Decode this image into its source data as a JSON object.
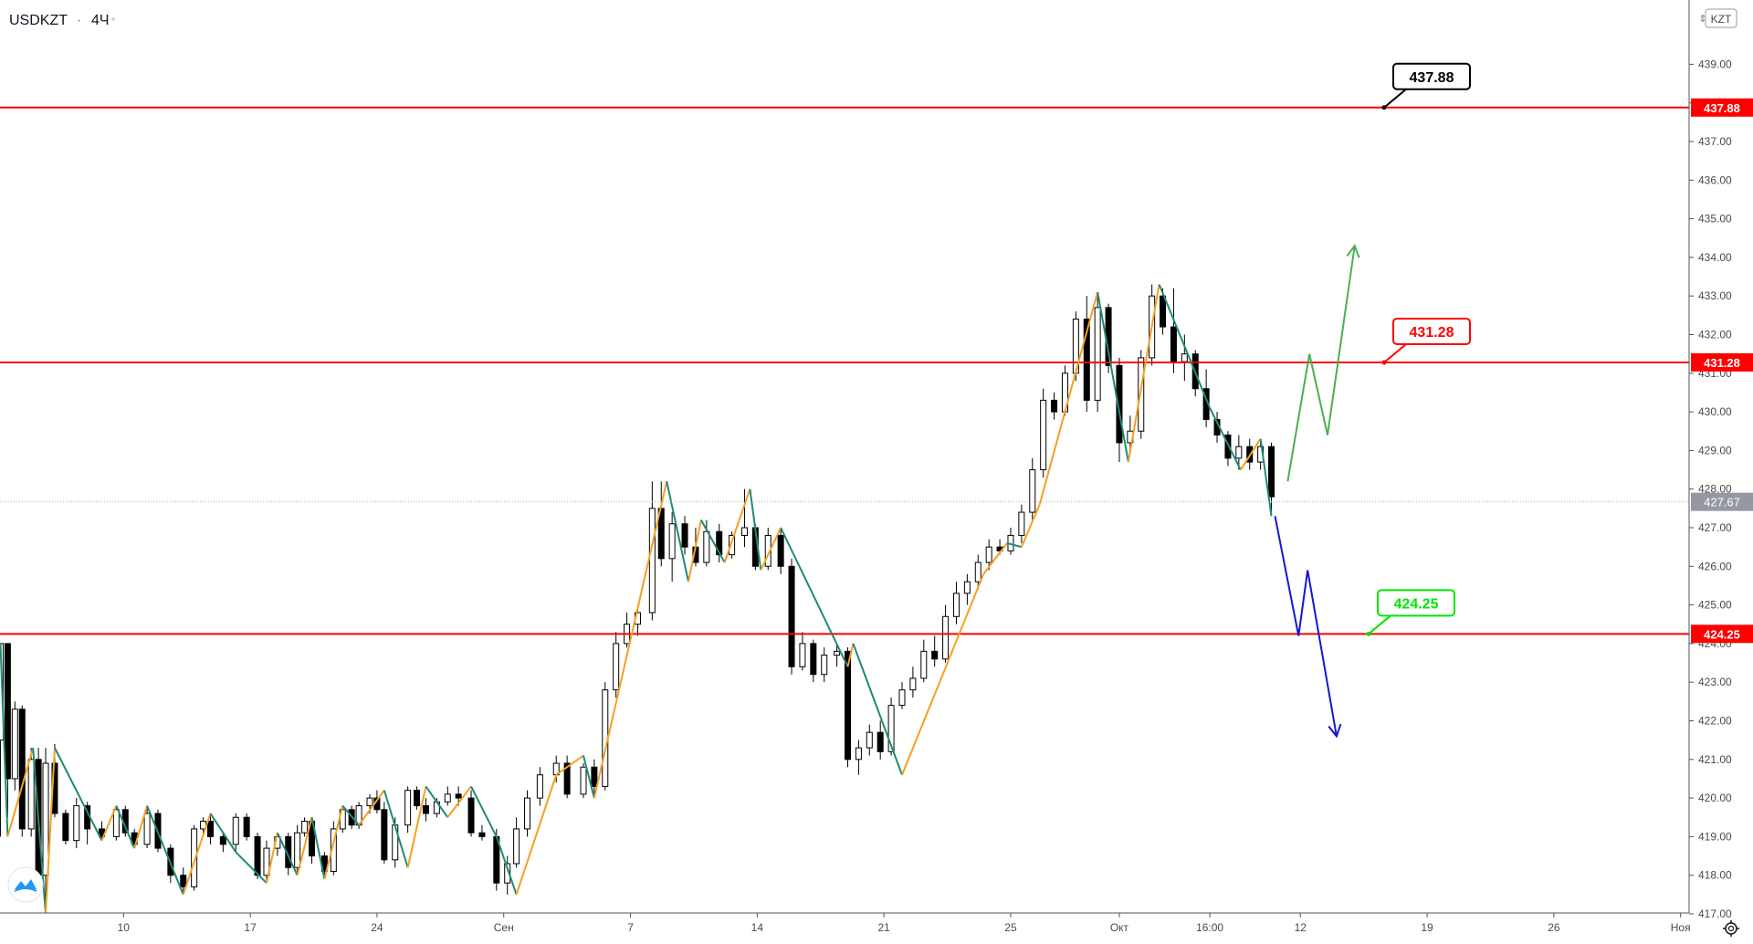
{
  "header": {
    "symbol": "USDKZT",
    "separator": "·",
    "interval": "4Ч"
  },
  "currency_badge": "KZT",
  "colors": {
    "level_line": "#ff0000",
    "zigzag_up": "#f5a020",
    "zigzag_down": "#1f8a78",
    "projection_up": "#4caf50",
    "projection_down": "#1515d8",
    "candle_up": "#ffffff",
    "candle_down": "#000000",
    "current_price_badge": "#9598a1",
    "label_black": "#000000",
    "label_red": "#ff0000",
    "label_green": "#00e600"
  },
  "chart_data": {
    "type": "candlestick",
    "symbol": "USDKZT",
    "interval": "4Ч",
    "y_axis": {
      "min": 417,
      "max": 439,
      "ticks": [
        "417.00",
        "418.00",
        "419.00",
        "420.00",
        "421.00",
        "422.00",
        "423.00",
        "424.00",
        "425.00",
        "426.00",
        "427.00",
        "428.00",
        "429.00",
        "430.00",
        "431.00",
        "432.00",
        "433.00",
        "434.00",
        "435.00",
        "436.00",
        "437.00",
        "438.00",
        "439.00"
      ]
    },
    "x_axis": {
      "ticks": [
        {
          "label": "10",
          "x": 10
        },
        {
          "label": "17",
          "x": 17
        },
        {
          "label": "24",
          "x": 24
        },
        {
          "label": "Сен",
          "x": 31
        },
        {
          "label": "7",
          "x": 38
        },
        {
          "label": "14",
          "x": 45
        },
        {
          "label": "21",
          "x": 52
        },
        {
          "label": "25",
          "x": 59
        },
        {
          "label": "Окт",
          "x": 65
        },
        {
          "label": "16:00",
          "x": 70
        },
        {
          "label": "12",
          "x": 75
        },
        {
          "label": "19",
          "x": 82
        },
        {
          "label": "26",
          "x": 89
        },
        {
          "label": "Ноя",
          "x": 96
        }
      ]
    },
    "current_price": "427.67",
    "levels": [
      {
        "value": 437.88,
        "label": "437.88",
        "color": "black"
      },
      {
        "value": 431.28,
        "label": "431.28",
        "color": "red"
      },
      {
        "value": 424.25,
        "label": "424.25",
        "color": "green"
      }
    ],
    "zigzag": [
      [
        3.2,
        424.0
      ],
      [
        3.6,
        419.0
      ],
      [
        5.0,
        421.3
      ],
      [
        5.7,
        417.0
      ],
      [
        6.2,
        421.3
      ],
      [
        8.8,
        418.9
      ],
      [
        9.6,
        419.8
      ],
      [
        10.6,
        418.7
      ],
      [
        11.3,
        419.8
      ],
      [
        13.3,
        417.5
      ],
      [
        14.8,
        419.6
      ],
      [
        16.2,
        418.6
      ],
      [
        17.9,
        417.8
      ],
      [
        18.5,
        419.1
      ],
      [
        19.6,
        418.0
      ],
      [
        20.4,
        419.5
      ],
      [
        21.1,
        417.9
      ],
      [
        22.1,
        419.8
      ],
      [
        23.0,
        419.3
      ],
      [
        24.4,
        420.2
      ],
      [
        25.7,
        418.2
      ],
      [
        26.7,
        420.3
      ],
      [
        27.9,
        419.5
      ],
      [
        29.2,
        420.3
      ],
      [
        30.6,
        419.0
      ],
      [
        31.7,
        417.5
      ],
      [
        33.9,
        420.6
      ],
      [
        35.4,
        421.1
      ],
      [
        36.0,
        420.0
      ],
      [
        40.0,
        428.2
      ],
      [
        41.2,
        425.6
      ],
      [
        41.9,
        427.2
      ],
      [
        43.2,
        426.1
      ],
      [
        44.6,
        428.0
      ],
      [
        45.2,
        425.9
      ],
      [
        46.3,
        427.0
      ],
      [
        50.0,
        423.4
      ],
      [
        50.3,
        424.0
      ],
      [
        53.0,
        420.6
      ],
      [
        57.5,
        425.8
      ],
      [
        58.8,
        426.6
      ],
      [
        59.6,
        426.5
      ],
      [
        60.6,
        427.6
      ],
      [
        63.8,
        433.1
      ],
      [
        65.5,
        428.7
      ],
      [
        67.2,
        433.3
      ],
      [
        70.0,
        430.1
      ],
      [
        71.7,
        428.5
      ],
      [
        72.8,
        429.3
      ],
      [
        73.4,
        427.3
      ]
    ],
    "candles": [
      [
        3.2,
        421.5,
        424.0,
        419.0,
        424.0
      ],
      [
        3.6,
        424.0,
        424.0,
        419.5,
        420.5
      ],
      [
        4.0,
        420.5,
        422.5,
        420.2,
        422.3
      ],
      [
        4.4,
        422.3,
        422.4,
        419.0,
        419.2
      ],
      [
        4.9,
        419.2,
        421.3,
        419.0,
        421.0
      ],
      [
        5.3,
        421.0,
        421.3,
        417.5,
        418.0
      ],
      [
        5.7,
        418.0,
        421.3,
        417.0,
        420.9
      ],
      [
        6.2,
        420.9,
        421.4,
        419.5,
        419.6
      ],
      [
        6.8,
        419.6,
        419.7,
        418.8,
        418.9
      ],
      [
        7.4,
        418.9,
        420.0,
        418.7,
        419.8
      ],
      [
        8.0,
        419.8,
        419.9,
        418.8,
        419.2
      ],
      [
        8.8,
        419.2,
        419.4,
        418.9,
        419.0
      ],
      [
        9.6,
        419.0,
        419.8,
        418.9,
        419.7
      ],
      [
        10.1,
        419.7,
        419.8,
        419.0,
        419.1
      ],
      [
        10.6,
        419.1,
        419.2,
        418.7,
        418.8
      ],
      [
        11.3,
        418.8,
        419.8,
        418.7,
        419.6
      ],
      [
        11.9,
        419.6,
        419.7,
        418.6,
        418.7
      ],
      [
        12.6,
        418.7,
        418.8,
        417.8,
        418.0
      ],
      [
        13.3,
        418.0,
        418.2,
        417.5,
        417.7
      ],
      [
        13.9,
        417.7,
        419.3,
        417.6,
        419.2
      ],
      [
        14.4,
        419.2,
        419.5,
        419.0,
        419.4
      ],
      [
        14.8,
        419.4,
        419.6,
        418.8,
        419.0
      ],
      [
        15.5,
        419.0,
        419.1,
        418.6,
        418.8
      ],
      [
        16.2,
        418.8,
        419.6,
        418.6,
        419.5
      ],
      [
        16.8,
        419.5,
        419.6,
        418.9,
        419.0
      ],
      [
        17.4,
        419.0,
        419.1,
        417.9,
        418.0
      ],
      [
        17.9,
        418.0,
        418.9,
        417.8,
        418.7
      ],
      [
        18.5,
        418.7,
        419.1,
        418.5,
        419.0
      ],
      [
        19.1,
        419.0,
        419.1,
        418.0,
        418.2
      ],
      [
        19.6,
        418.2,
        419.3,
        418.0,
        419.1
      ],
      [
        20.0,
        419.1,
        419.5,
        419.0,
        419.4
      ],
      [
        20.4,
        419.4,
        419.5,
        418.3,
        418.5
      ],
      [
        21.1,
        418.5,
        418.6,
        417.9,
        418.1
      ],
      [
        21.6,
        418.1,
        419.4,
        418.0,
        419.2
      ],
      [
        22.1,
        419.2,
        419.8,
        419.1,
        419.7
      ],
      [
        22.6,
        419.7,
        419.8,
        419.2,
        419.3
      ],
      [
        23.0,
        419.3,
        419.9,
        419.2,
        419.8
      ],
      [
        23.6,
        419.8,
        420.1,
        419.6,
        420.0
      ],
      [
        24.0,
        420.0,
        420.2,
        419.6,
        419.7
      ],
      [
        24.4,
        419.7,
        419.9,
        418.3,
        418.4
      ],
      [
        25.0,
        418.4,
        419.5,
        418.2,
        419.3
      ],
      [
        25.7,
        419.3,
        420.3,
        419.1,
        420.2
      ],
      [
        26.2,
        420.2,
        420.3,
        419.7,
        419.8
      ],
      [
        26.7,
        419.8,
        420.0,
        419.4,
        419.6
      ],
      [
        27.3,
        419.6,
        420.0,
        419.5,
        419.9
      ],
      [
        27.9,
        419.9,
        420.3,
        419.8,
        420.1
      ],
      [
        28.5,
        420.1,
        420.3,
        419.8,
        420.0
      ],
      [
        29.2,
        420.0,
        420.2,
        419.0,
        419.1
      ],
      [
        29.8,
        419.1,
        419.3,
        418.9,
        419.0
      ],
      [
        30.6,
        419.0,
        419.2,
        417.6,
        417.8
      ],
      [
        31.2,
        417.8,
        418.5,
        417.5,
        418.3
      ],
      [
        31.7,
        418.3,
        419.5,
        418.2,
        419.2
      ],
      [
        32.3,
        419.2,
        420.2,
        419.0,
        420.0
      ],
      [
        33.0,
        420.0,
        420.8,
        419.8,
        420.6
      ],
      [
        33.9,
        420.6,
        421.1,
        420.4,
        420.9
      ],
      [
        34.5,
        420.9,
        421.1,
        420.0,
        420.1
      ],
      [
        35.4,
        420.1,
        420.9,
        420.0,
        420.8
      ],
      [
        36.0,
        420.8,
        421.0,
        420.0,
        420.3
      ],
      [
        36.6,
        420.3,
        423.0,
        420.2,
        422.8
      ],
      [
        37.2,
        422.8,
        424.3,
        422.6,
        424.0
      ],
      [
        37.8,
        424.0,
        424.8,
        423.9,
        424.5
      ],
      [
        38.4,
        424.5,
        425.0,
        424.2,
        424.8
      ],
      [
        39.2,
        424.8,
        428.2,
        424.6,
        427.5
      ],
      [
        39.7,
        427.5,
        428.2,
        426.0,
        426.2
      ],
      [
        40.3,
        426.2,
        427.4,
        425.6,
        427.1
      ],
      [
        41.0,
        427.1,
        427.3,
        426.3,
        426.5
      ],
      [
        41.6,
        426.5,
        427.0,
        426.0,
        426.1
      ],
      [
        42.2,
        426.1,
        427.2,
        426.0,
        426.9
      ],
      [
        42.9,
        426.9,
        427.1,
        426.1,
        426.3
      ],
      [
        43.6,
        426.3,
        426.9,
        426.2,
        426.8
      ],
      [
        44.3,
        426.8,
        428.0,
        426.5,
        427.0
      ],
      [
        44.9,
        427.0,
        427.1,
        425.9,
        426.0
      ],
      [
        45.6,
        426.0,
        427.0,
        425.9,
        426.8
      ],
      [
        46.3,
        426.8,
        427.0,
        425.8,
        426.0
      ],
      [
        46.9,
        426.0,
        426.2,
        423.2,
        423.4
      ],
      [
        47.5,
        423.4,
        424.3,
        423.3,
        424.0
      ],
      [
        48.1,
        424.0,
        424.1,
        423.0,
        423.2
      ],
      [
        48.7,
        423.2,
        423.9,
        423.0,
        423.7
      ],
      [
        49.4,
        423.7,
        424.0,
        423.4,
        423.8
      ],
      [
        50.0,
        423.8,
        423.9,
        420.8,
        421.0
      ],
      [
        50.6,
        421.0,
        421.5,
        420.6,
        421.3
      ],
      [
        51.2,
        421.3,
        421.9,
        421.1,
        421.7
      ],
      [
        51.8,
        421.7,
        422.0,
        421.0,
        421.2
      ],
      [
        52.4,
        421.2,
        422.6,
        421.1,
        422.4
      ],
      [
        53.0,
        422.4,
        423.0,
        422.3,
        422.8
      ],
      [
        53.6,
        422.8,
        423.4,
        422.6,
        423.1
      ],
      [
        54.2,
        423.1,
        424.1,
        423.0,
        423.8
      ],
      [
        54.8,
        423.8,
        424.2,
        423.4,
        423.6
      ],
      [
        55.4,
        423.6,
        425.0,
        423.5,
        424.7
      ],
      [
        56.0,
        424.7,
        425.6,
        424.5,
        425.3
      ],
      [
        56.6,
        425.3,
        425.8,
        425.0,
        425.6
      ],
      [
        57.2,
        425.6,
        426.3,
        425.4,
        426.1
      ],
      [
        57.8,
        426.1,
        426.7,
        425.9,
        426.5
      ],
      [
        58.4,
        426.5,
        426.7,
        426.3,
        426.4
      ],
      [
        59.0,
        426.4,
        427.0,
        426.3,
        426.8
      ],
      [
        59.6,
        426.8,
        427.6,
        426.6,
        427.4
      ],
      [
        60.2,
        427.4,
        428.8,
        427.2,
        428.5
      ],
      [
        60.8,
        428.5,
        430.6,
        428.3,
        430.3
      ],
      [
        61.4,
        430.3,
        430.5,
        429.8,
        430.0
      ],
      [
        62.0,
        430.0,
        431.2,
        429.9,
        431.0
      ],
      [
        62.6,
        431.0,
        432.6,
        430.8,
        432.4
      ],
      [
        63.2,
        432.4,
        433.0,
        430.0,
        430.3
      ],
      [
        63.8,
        430.3,
        433.1,
        430.0,
        432.7
      ],
      [
        64.4,
        432.7,
        432.8,
        431.0,
        431.2
      ],
      [
        65.0,
        431.2,
        431.4,
        428.7,
        429.2
      ],
      [
        65.6,
        429.2,
        429.9,
        429.0,
        429.5
      ],
      [
        66.2,
        429.5,
        431.6,
        429.3,
        431.4
      ],
      [
        66.8,
        431.4,
        433.3,
        431.2,
        433.0
      ],
      [
        67.4,
        433.0,
        433.2,
        432.0,
        432.2
      ],
      [
        68.0,
        432.2,
        433.2,
        431.0,
        431.3
      ],
      [
        68.6,
        431.3,
        432.0,
        430.8,
        431.5
      ],
      [
        69.2,
        431.5,
        431.6,
        430.4,
        430.6
      ],
      [
        69.8,
        430.6,
        431.1,
        429.6,
        429.8
      ],
      [
        70.4,
        429.8,
        430.0,
        429.2,
        429.4
      ],
      [
        71.0,
        429.4,
        429.5,
        428.6,
        428.8
      ],
      [
        71.6,
        428.8,
        429.4,
        428.5,
        429.1
      ],
      [
        72.2,
        429.1,
        429.3,
        428.5,
        428.7
      ],
      [
        72.8,
        428.7,
        429.3,
        428.5,
        429.1
      ],
      [
        73.4,
        429.1,
        429.2,
        427.3,
        427.8
      ]
    ],
    "projections": [
      {
        "direction": "up",
        "points": [
          [
            74.3,
            428.2
          ],
          [
            75.5,
            431.5
          ],
          [
            76.5,
            429.4
          ],
          [
            78.0,
            434.3
          ]
        ]
      },
      {
        "direction": "down",
        "points": [
          [
            73.6,
            427.3
          ],
          [
            74.9,
            424.2
          ],
          [
            75.4,
            425.9
          ],
          [
            77.0,
            421.6
          ]
        ]
      }
    ]
  }
}
